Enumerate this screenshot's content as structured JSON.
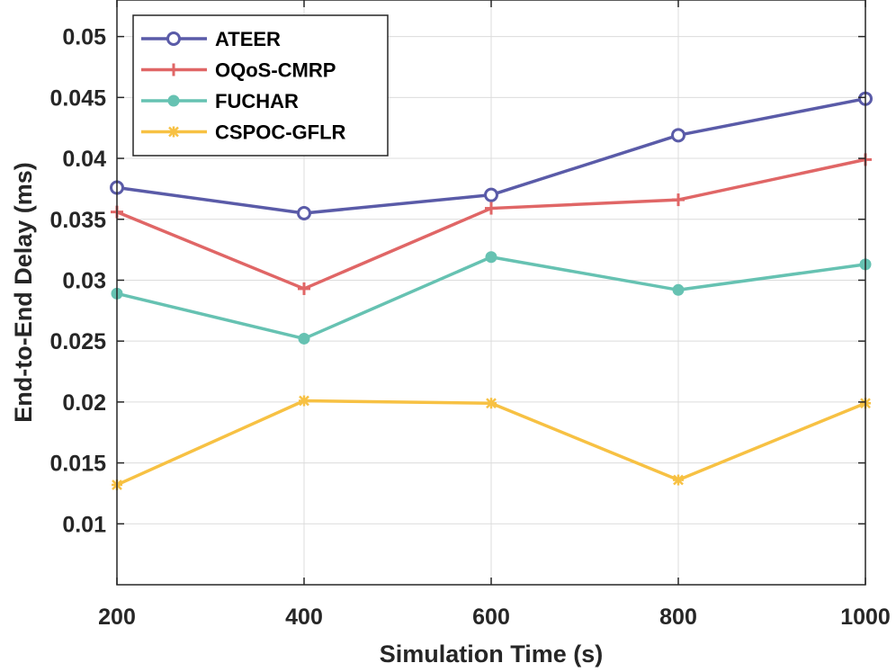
{
  "chart_data": {
    "type": "line",
    "title": "",
    "xlabel": "Simulation Time (s)",
    "ylabel": "End-to-End Delay (ms)",
    "x": [
      200,
      400,
      600,
      800,
      1000
    ],
    "xlim": [
      200,
      1000
    ],
    "ylim": [
      0.005,
      0.053
    ],
    "xticks": [
      "200",
      "400",
      "600",
      "800",
      "1000"
    ],
    "xtick_values": [
      200,
      400,
      600,
      800,
      1000
    ],
    "yticks": [
      "0.01",
      "0.015",
      "0.02",
      "0.025",
      "0.03",
      "0.035",
      "0.04",
      "0.045",
      "0.05"
    ],
    "ytick_values": [
      0.01,
      0.015,
      0.02,
      0.025,
      0.03,
      0.035,
      0.04,
      0.045,
      0.05
    ],
    "grid": true,
    "legend_position": "top-left",
    "series": [
      {
        "name": "ATEER",
        "color": "#5a5ba8",
        "marker": "circle-open",
        "values": [
          0.0376,
          0.0355,
          0.037,
          0.0419,
          0.0449
        ]
      },
      {
        "name": "OQoS-CMRP",
        "color": "#e06666",
        "marker": "plus",
        "values": [
          0.0356,
          0.0293,
          0.0359,
          0.0366,
          0.0399
        ]
      },
      {
        "name": "FUCHAR",
        "color": "#66c2b2",
        "marker": "circle-filled",
        "values": [
          0.0289,
          0.0252,
          0.0319,
          0.0292,
          0.0313
        ]
      },
      {
        "name": "CSPOC-GFLR",
        "color": "#f7c143",
        "marker": "star",
        "values": [
          0.0132,
          0.0201,
          0.0199,
          0.0136,
          0.0199
        ]
      }
    ]
  }
}
